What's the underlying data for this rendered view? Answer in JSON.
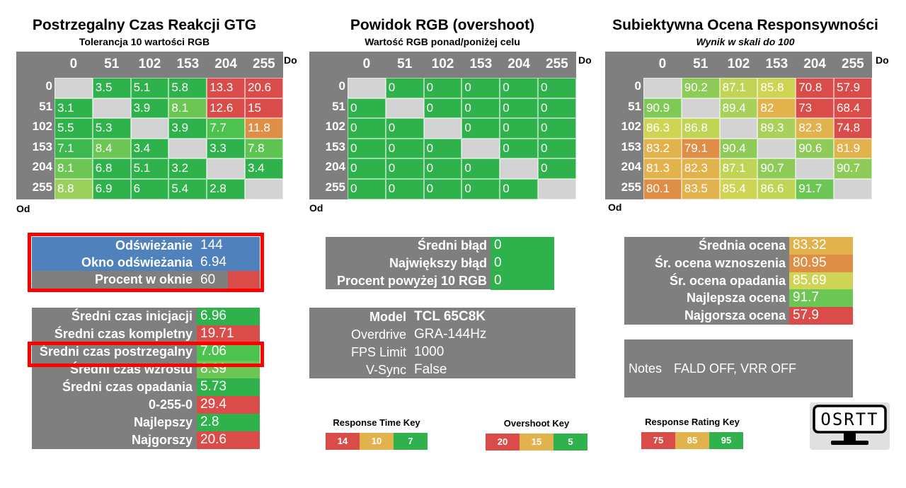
{
  "colors": {
    "green_best": "#2fb14c",
    "green": "#4cc24f",
    "light_green": "#99cf5a",
    "yellow": "#cfd455",
    "orange_yellow": "#e2b24d",
    "orange": "#de8f45",
    "red": "#da4c49",
    "diagonal": "#d3d3d3",
    "panel_gray": "#7f7f7f",
    "blue": "#4f81bd",
    "highlight_red": "#ff0000"
  },
  "gtg": {
    "title": "Postrzegalny Czas Reakcji GTG",
    "subtitle": "Tolerancja 10 wartości RGB",
    "to_label": "Do",
    "from_label": "Od",
    "columns": [
      "0",
      "51",
      "102",
      "153",
      "204",
      "255"
    ],
    "rows": [
      "0",
      "51",
      "102",
      "153",
      "204",
      "255"
    ],
    "cells": [
      [
        "",
        "3.5",
        "5.1",
        "5.8",
        "13.3",
        "20.6"
      ],
      [
        "3.1",
        "",
        "3.9",
        "8.1",
        "12.6",
        "15"
      ],
      [
        "5.5",
        "5.3",
        "",
        "3.9",
        "7.7",
        "11.8"
      ],
      [
        "7.1",
        "8.4",
        "3.4",
        "",
        "3.3",
        "7.8"
      ],
      [
        "8.1",
        "6.8",
        "5.1",
        "3.2",
        "",
        "3.4"
      ],
      [
        "8.8",
        "6.9",
        "6",
        "5.4",
        "2.8",
        ""
      ]
    ],
    "cell_colors": [
      [
        "#d3d3d3",
        "#2fb14c",
        "#2fb14c",
        "#2fb14c",
        "#da4c49",
        "#da4c49"
      ],
      [
        "#2fb14c",
        "#d3d3d3",
        "#2fb14c",
        "#6cc653",
        "#da4c49",
        "#da4c49"
      ],
      [
        "#2fb14c",
        "#2fb14c",
        "#d3d3d3",
        "#2fb14c",
        "#4cc24f",
        "#de8f45"
      ],
      [
        "#3cb84e",
        "#6cc653",
        "#2fb14c",
        "#d3d3d3",
        "#2fb14c",
        "#5dc351"
      ],
      [
        "#6cc653",
        "#2fb14c",
        "#2fb14c",
        "#2fb14c",
        "#d3d3d3",
        "#2fb14c"
      ],
      [
        "#99cf5a",
        "#2fb14c",
        "#2fb14c",
        "#2fb14c",
        "#2fb14c",
        "#d3d3d3"
      ]
    ]
  },
  "overshoot": {
    "title": "Powidok RGB (overshoot)",
    "subtitle": "Wartość RGB ponad/poniżej celu",
    "to_label": "Do",
    "from_label": "Od",
    "columns": [
      "0",
      "51",
      "102",
      "153",
      "204",
      "255"
    ],
    "rows": [
      "0",
      "51",
      "102",
      "153",
      "204",
      "255"
    ],
    "cells": [
      [
        "",
        "0",
        "0",
        "0",
        "0",
        "0"
      ],
      [
        "0",
        "",
        "0",
        "0",
        "0",
        "0"
      ],
      [
        "0",
        "0",
        "",
        "0",
        "0",
        "0"
      ],
      [
        "0",
        "0",
        "0",
        "",
        "0",
        "0"
      ],
      [
        "0",
        "0",
        "0",
        "0",
        "",
        "0"
      ],
      [
        "0",
        "0",
        "0",
        "0",
        "0",
        ""
      ]
    ],
    "cell_colors": [
      [
        "#d3d3d3",
        "#2fb14c",
        "#2fb14c",
        "#2fb14c",
        "#2fb14c",
        "#2fb14c"
      ],
      [
        "#2fb14c",
        "#d3d3d3",
        "#2fb14c",
        "#2fb14c",
        "#2fb14c",
        "#2fb14c"
      ],
      [
        "#2fb14c",
        "#2fb14c",
        "#d3d3d3",
        "#2fb14c",
        "#2fb14c",
        "#2fb14c"
      ],
      [
        "#2fb14c",
        "#2fb14c",
        "#2fb14c",
        "#d3d3d3",
        "#2fb14c",
        "#2fb14c"
      ],
      [
        "#2fb14c",
        "#2fb14c",
        "#2fb14c",
        "#2fb14c",
        "#d3d3d3",
        "#2fb14c"
      ],
      [
        "#2fb14c",
        "#2fb14c",
        "#2fb14c",
        "#2fb14c",
        "#2fb14c",
        "#d3d3d3"
      ]
    ]
  },
  "rating": {
    "title": "Subiektywna Ocena Responsywności",
    "subtitle": "Wynik w skali do 100",
    "to_label": "Do",
    "from_label": "Od",
    "columns": [
      "0",
      "51",
      "102",
      "153",
      "204",
      "255"
    ],
    "rows": [
      "0",
      "51",
      "102",
      "153",
      "204",
      "255"
    ],
    "cells": [
      [
        "",
        "90.2",
        "87.1",
        "85.8",
        "70.8",
        "57.9"
      ],
      [
        "90.9",
        "",
        "89.4",
        "82",
        "73",
        "68.4"
      ],
      [
        "86.3",
        "86.8",
        "",
        "89.3",
        "82.3",
        "74.8"
      ],
      [
        "83.2",
        "79.1",
        "90.4",
        "",
        "90.6",
        "81.9"
      ],
      [
        "81.3",
        "82.3",
        "87.1",
        "90.7",
        "",
        "90.7"
      ],
      [
        "80.1",
        "83.5",
        "85.4",
        "86.6",
        "91.7",
        ""
      ]
    ],
    "cell_colors": [
      [
        "#d3d3d3",
        "#8fcb58",
        "#c2d456",
        "#cfd455",
        "#da4c49",
        "#da4c49"
      ],
      [
        "#7fc956",
        "#d3d3d3",
        "#a8d05a",
        "#e2b24d",
        "#da4c49",
        "#da4c49"
      ],
      [
        "#cfd455",
        "#c2d456",
        "#d3d3d3",
        "#a8d05a",
        "#e2b24d",
        "#da4c49"
      ],
      [
        "#e2b24d",
        "#de8f45",
        "#8fcb58",
        "#d3d3d3",
        "#8fcb58",
        "#e2b24d"
      ],
      [
        "#e2b24d",
        "#e2b24d",
        "#c2d456",
        "#8fcb58",
        "#d3d3d3",
        "#8fcb58"
      ],
      [
        "#de8f45",
        "#e2b24d",
        "#cfd455",
        "#c2d456",
        "#6cc653",
        "#d3d3d3"
      ]
    ]
  },
  "refresh_panel": {
    "rows": [
      {
        "label": "Odświeżanie",
        "value": "144"
      },
      {
        "label": "Okno odświeżania",
        "value": "6.94"
      },
      {
        "label": "Procent w oknie",
        "value": "60"
      }
    ]
  },
  "times_panel": {
    "rows": [
      {
        "label": "Średni czas inicjacji",
        "value": "6.96",
        "color": "#2fb14c"
      },
      {
        "label": "Średni czas kompletny",
        "value": "19.71",
        "color": "#da4c49"
      },
      {
        "label": "Średni czas postrzegalny",
        "value": "7.06",
        "color": "#4cc24f"
      },
      {
        "label": "Średni czas wzrostu",
        "value": "8.39",
        "color": "#6cc653"
      },
      {
        "label": "Średni czas opadania",
        "value": "5.73",
        "color": "#2fb14c"
      },
      {
        "label": "0-255-0",
        "value": "29.4",
        "color": "#da4c49"
      },
      {
        "label": "Najlepszy",
        "value": "2.8",
        "color": "#2fb14c"
      },
      {
        "label": "Najgorszy",
        "value": "20.6",
        "color": "#da4c49"
      }
    ]
  },
  "error_panel": {
    "rows": [
      {
        "label": "Średni błąd",
        "value": "0"
      },
      {
        "label": "Największy błąd",
        "value": "0"
      },
      {
        "label": "Procent powyżej 10 RGB",
        "value": "0"
      }
    ]
  },
  "info_panel": {
    "rows": [
      {
        "label": "Model",
        "value": "TCL 65C8K",
        "bold": true
      },
      {
        "label": "Overdrive",
        "value": "GRA-144Hz",
        "bold": false
      },
      {
        "label": "FPS Limit",
        "value": "1000",
        "bold": false
      },
      {
        "label": "V-Sync",
        "value": "False",
        "bold": false
      }
    ]
  },
  "score_panel": {
    "rows": [
      {
        "label": "Średnia ocena",
        "value": "83.32",
        "color": "#e2b24d"
      },
      {
        "label": "Śr. ocena wznoszenia",
        "value": "80.95",
        "color": "#de8f45"
      },
      {
        "label": "Śr. ocena opadania",
        "value": "85.69",
        "color": "#cfd455"
      },
      {
        "label": "Najlepsza ocena",
        "value": "91.7",
        "color": "#6cc653"
      },
      {
        "label": "Najgorsza ocena",
        "value": "57.9",
        "color": "#da4c49"
      }
    ]
  },
  "notes_panel": {
    "label": "Notes",
    "value": "FALD OFF, VRR OFF"
  },
  "keys": [
    {
      "title": "Response Time Key",
      "values": [
        "14",
        "10",
        "7"
      ],
      "colors": [
        "#da4c49",
        "#e2b24d",
        "#2fb14c"
      ]
    },
    {
      "title": "Overshoot Key",
      "values": [
        "20",
        "15",
        "5"
      ],
      "colors": [
        "#da4c49",
        "#e2b24d",
        "#2fb14c"
      ]
    },
    {
      "title": "Response Rating Key",
      "values": [
        "75",
        "85",
        "95"
      ],
      "colors": [
        "#da4c49",
        "#e2b24d",
        "#2fb14c"
      ]
    }
  ],
  "logo": {
    "text": "OSRTT",
    "icon": "monitor-icon"
  }
}
